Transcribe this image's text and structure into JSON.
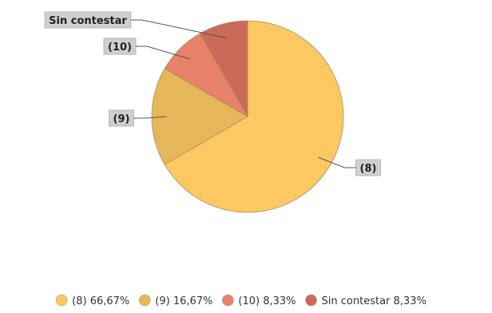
{
  "chart_data": {
    "type": "pie",
    "categories": [
      "(8)",
      "(9)",
      "(10)",
      "Sin contestar"
    ],
    "values": [
      66.67,
      16.67,
      8.33,
      8.33
    ],
    "percent_labels": [
      "66,67%",
      "16,67%",
      "8,33%",
      "8,33%"
    ],
    "callout_labels": [
      "(8)",
      "(9)",
      "(10)",
      "Sin contestar"
    ],
    "legend_labels": [
      "(8) 66,67%",
      "(9) 16,67%",
      "(10) 8,33%",
      "Sin contestar 8,33%"
    ],
    "colors": [
      "#fcc862",
      "#e6b75a",
      "#e8826a",
      "#cc6a5a"
    ],
    "legend_position": "bottom"
  }
}
